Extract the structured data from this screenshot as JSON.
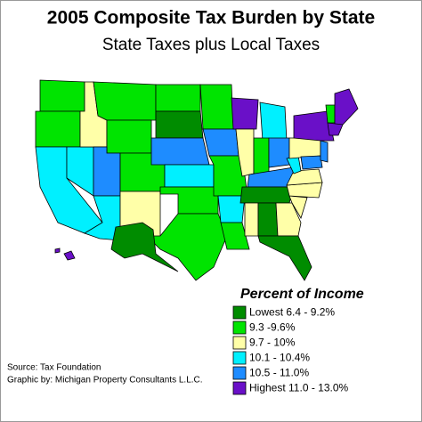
{
  "title": "2005 Composite Tax Burden by State",
  "subtitle": "State Taxes plus Local Taxes",
  "legend": {
    "title": "Percent of Income",
    "items": [
      {
        "label": "Lowest 6.4 - 9.2%",
        "color": "#008c00"
      },
      {
        "label": "9.3 -9.6%",
        "color": "#00e400"
      },
      {
        "label": "9.7 - 10%",
        "color": "#ffffa8"
      },
      {
        "label": "10.1 - 10.4%",
        "color": "#00f0ff"
      },
      {
        "label": "10.5 - 11.0%",
        "color": "#1e8cff"
      },
      {
        "label": "Highest 11.0 - 13.0%",
        "color": "#6a10c8"
      }
    ]
  },
  "source": [
    "Source:   Tax Foundation",
    "Graphic by:  Michigan Property Consultants L.L.C."
  ]
}
